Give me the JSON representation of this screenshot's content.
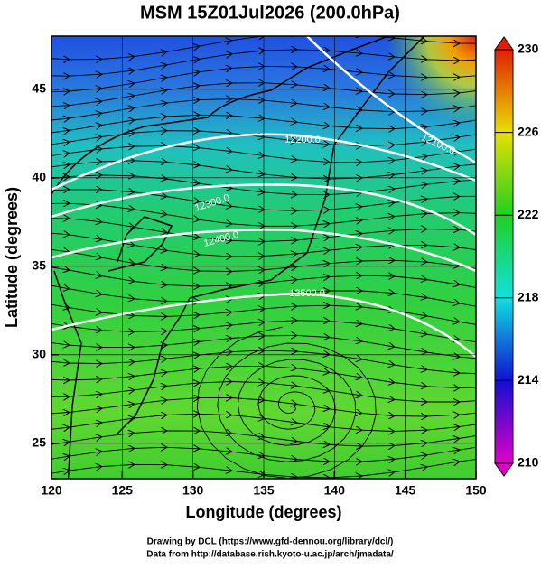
{
  "chart_data": {
    "type": "map",
    "title": "MSM 15Z01Jul2026 (200.0hPa)",
    "x_label": "Longitude (degrees)",
    "y_label": "Latitude  (degrees)",
    "xlim": [
      120,
      150
    ],
    "ylim": [
      23,
      48
    ],
    "xticks": [
      120,
      125,
      130,
      135,
      140,
      145,
      150
    ],
    "yticks": [
      25,
      30,
      35,
      40,
      45
    ],
    "grid": true,
    "colorbar": {
      "lim": [
        210,
        230
      ],
      "ticks": [
        210,
        214,
        218,
        222,
        226,
        230
      ],
      "colors": [
        "#e000c8",
        "#1010d0",
        "#10e0e0",
        "#20d020",
        "#e8e000",
        "#e02000"
      ]
    },
    "contour_labels": [
      "12100.0",
      "12200.0",
      "12300.0",
      "12400.0",
      "12500.0"
    ],
    "credits": [
      "Drawing by DCL (https://www.gfd-dennou.org/library/dcl/)",
      "Data from http://database.rish.kyoto-u.ac.jp/arch/jmadata/"
    ]
  }
}
